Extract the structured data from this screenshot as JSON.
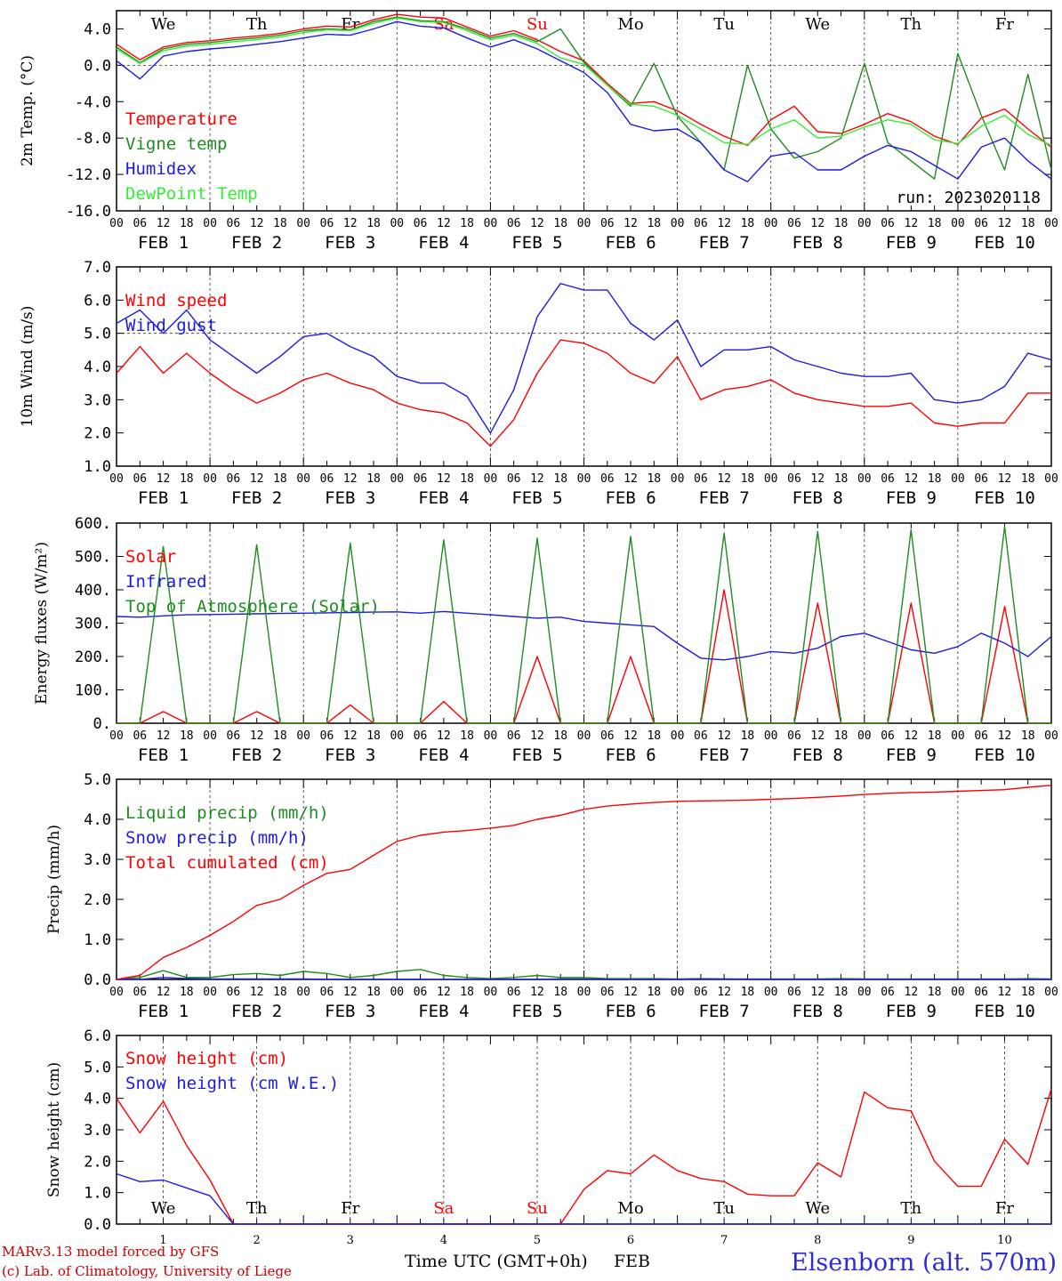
{
  "colors": {
    "red": "#ff0000",
    "dark_green": "#1e8c1e",
    "light_green": "#33ee33",
    "blue": "#1c1ce0",
    "axis": "#000000",
    "station": "#2b2bdf",
    "credit": "#cc0000"
  },
  "footer": {
    "credit_line1": "MARv3.13 model forced by GFS",
    "credit_line2": "(c) Lab. of Climatology, University of Liege",
    "time_label": "Time UTC (GMT+0h)",
    "month_label": "FEB",
    "station": "Elsenborn (alt. 570m)"
  },
  "chart_data": [
    {
      "type": "line",
      "ylabel": "2m Temp. (°C)",
      "ylim": [
        -16,
        6
      ],
      "yticks": [
        "4.0",
        "0.0",
        "-4.0",
        "-8.0",
        "-12.0",
        "-16.0"
      ],
      "ytick_values": [
        4,
        0,
        -4,
        -8,
        -12,
        -16
      ],
      "zero_line": 0,
      "weekday_labels": [
        "We",
        "Th",
        "Fr",
        "Sa",
        "Su",
        "Mo",
        "Tu",
        "We",
        "Th",
        "Fr"
      ],
      "weekday_colors": [
        "#000000",
        "#000000",
        "#000000",
        "#ff0000",
        "#ff0000",
        "#000000",
        "#000000",
        "#000000",
        "#000000",
        "#000000"
      ],
      "hour_ticks": [
        "00",
        "06",
        "12",
        "18"
      ],
      "date_labels": [
        "FEB 1",
        "FEB 2",
        "FEB 3",
        "FEB 4",
        "FEB 5",
        "FEB 6",
        "FEB 7",
        "FEB 8",
        "FEB 9",
        "FEB 10"
      ],
      "annotation": "run: 2023020118",
      "legend": [
        "Temperature",
        "Vigne temp",
        "Humidex",
        "DewPoint Temp"
      ],
      "x_hours": [
        0,
        6,
        12,
        18,
        24,
        30,
        36,
        42,
        48,
        54,
        60,
        66,
        72,
        78,
        84,
        90,
        96,
        102,
        108,
        114,
        120,
        126,
        132,
        138,
        144,
        150,
        156,
        162,
        168,
        174,
        180,
        186,
        192,
        198,
        204,
        210,
        216,
        222,
        228,
        234,
        240
      ],
      "series": [
        {
          "name": "Temperature",
          "color": "#ff0000",
          "values": [
            2.3,
            0.6,
            2.0,
            2.5,
            2.7,
            3.0,
            3.2,
            3.5,
            4.0,
            4.3,
            4.2,
            5.0,
            5.6,
            5.3,
            5.2,
            4.2,
            3.2,
            3.8,
            2.8,
            1.5,
            0.5,
            -2.0,
            -4.2,
            -4.0,
            -5.0,
            -6.5,
            -7.8,
            -8.8,
            -6.0,
            -4.5,
            -7.3,
            -7.5,
            -6.5,
            -5.3,
            -6.2,
            -7.8,
            -8.7,
            -5.8,
            -4.8,
            -7.0,
            -9.0
          ]
        },
        {
          "name": "Vigne temp",
          "color": "#1e8c1e",
          "values": [
            2.0,
            0.3,
            1.8,
            2.3,
            2.5,
            2.8,
            3.0,
            3.3,
            3.8,
            4.0,
            3.9,
            4.8,
            5.3,
            4.9,
            4.8,
            4.0,
            3.0,
            3.5,
            2.6,
            4.0,
            0.3,
            -2.2,
            -4.5,
            0.2,
            -5.6,
            -8.5,
            -11.5,
            0.0,
            -7.0,
            -10.2,
            -9.5,
            -8.0,
            0.2,
            -8.5,
            -10.5,
            -12.5,
            1.3,
            -5.5,
            -11.5,
            -1.0,
            -11.5
          ]
        },
        {
          "name": "Humidex",
          "color": "#1c1ce0",
          "values": [
            0.5,
            -1.5,
            1.0,
            1.5,
            1.8,
            2.0,
            2.3,
            2.6,
            3.0,
            3.4,
            3.3,
            4.0,
            4.8,
            4.3,
            4.1,
            3.0,
            2.0,
            2.8,
            1.8,
            0.5,
            -0.8,
            -3.0,
            -6.5,
            -7.2,
            -7.0,
            -8.5,
            -11.5,
            -12.8,
            -10.0,
            -9.6,
            -11.5,
            -11.5,
            -10.0,
            -8.8,
            -9.5,
            -11.0,
            -12.5,
            -9.0,
            -8.0,
            -10.5,
            -12.5
          ]
        },
        {
          "name": "DewPoint Temp",
          "color": "#33ee33",
          "values": [
            1.8,
            0.2,
            1.6,
            2.1,
            2.3,
            2.6,
            2.8,
            3.1,
            3.6,
            3.9,
            3.8,
            4.6,
            5.2,
            4.8,
            4.7,
            3.8,
            2.8,
            3.3,
            2.4,
            0.8,
            0.1,
            -2.2,
            -4.3,
            -4.5,
            -5.5,
            -7.0,
            -8.5,
            -8.7,
            -7.0,
            -6.0,
            -8.0,
            -7.8,
            -6.8,
            -6.0,
            -6.5,
            -8.2,
            -8.6,
            -6.7,
            -5.5,
            -7.6,
            -8.8
          ]
        }
      ]
    },
    {
      "type": "line",
      "ylabel": "10m Wind (m/s)",
      "ylim": [
        1,
        7
      ],
      "yticks": [
        "7.0",
        "6.0",
        "5.0",
        "4.0",
        "3.0",
        "2.0",
        "1.0"
      ],
      "ytick_values": [
        7,
        6,
        5,
        4,
        3,
        2,
        1
      ],
      "zero_line": 5,
      "hour_ticks": [
        "00",
        "06",
        "12",
        "18"
      ],
      "date_labels": [
        "FEB 1",
        "FEB 2",
        "FEB 3",
        "FEB 4",
        "FEB 5",
        "FEB 6",
        "FEB 7",
        "FEB 8",
        "FEB 9",
        "FEB 10"
      ],
      "legend": [
        "Wind speed",
        "Wind gust"
      ],
      "x_hours": [
        0,
        6,
        12,
        18,
        24,
        30,
        36,
        42,
        48,
        54,
        60,
        66,
        72,
        78,
        84,
        90,
        96,
        102,
        108,
        114,
        120,
        126,
        132,
        138,
        144,
        150,
        156,
        162,
        168,
        174,
        180,
        186,
        192,
        198,
        204,
        210,
        216,
        222,
        228,
        234,
        240
      ],
      "series": [
        {
          "name": "Wind speed",
          "color": "#ff0000",
          "values": [
            3.8,
            4.6,
            3.8,
            4.4,
            3.8,
            3.3,
            2.9,
            3.2,
            3.6,
            3.8,
            3.5,
            3.3,
            2.9,
            2.7,
            2.6,
            2.3,
            1.6,
            2.4,
            3.8,
            4.8,
            4.7,
            4.4,
            3.8,
            3.5,
            4.3,
            3.0,
            3.3,
            3.4,
            3.6,
            3.2,
            3.0,
            2.9,
            2.8,
            2.8,
            2.9,
            2.3,
            2.2,
            2.3,
            2.3,
            3.2,
            3.2
          ]
        },
        {
          "name": "Wind gust",
          "color": "#1c1ce0",
          "values": [
            5.3,
            5.7,
            5.0,
            5.7,
            4.8,
            4.3,
            3.8,
            4.3,
            4.9,
            5.0,
            4.6,
            4.3,
            3.7,
            3.5,
            3.5,
            3.1,
            2.0,
            3.3,
            5.5,
            6.5,
            6.3,
            6.3,
            5.3,
            4.8,
            5.4,
            4.0,
            4.5,
            4.5,
            4.6,
            4.2,
            4.0,
            3.8,
            3.7,
            3.7,
            3.8,
            3.0,
            2.9,
            3.0,
            3.4,
            4.4,
            4.2
          ]
        }
      ]
    },
    {
      "type": "line",
      "ylabel": "Energy fluxes (W/m²)",
      "ylim": [
        0,
        600
      ],
      "yticks": [
        "600.",
        "500.",
        "400.",
        "300.",
        "200.",
        "100.",
        "0."
      ],
      "ytick_values": [
        600,
        500,
        400,
        300,
        200,
        100,
        0
      ],
      "hour_ticks": [
        "00",
        "06",
        "12",
        "18"
      ],
      "date_labels": [
        "FEB 1",
        "FEB 2",
        "FEB 3",
        "FEB 4",
        "FEB 5",
        "FEB 6",
        "FEB 7",
        "FEB 8",
        "FEB 9",
        "FEB 10"
      ],
      "legend": [
        "Solar",
        "Infrared",
        "Top of Atmosphere (Solar)"
      ],
      "x_hours": [
        0,
        6,
        12,
        18,
        24,
        30,
        36,
        42,
        48,
        54,
        60,
        66,
        72,
        78,
        84,
        90,
        96,
        102,
        108,
        114,
        120,
        126,
        132,
        138,
        144,
        150,
        156,
        162,
        168,
        174,
        180,
        186,
        192,
        198,
        204,
        210,
        216,
        222,
        228,
        234,
        240
      ],
      "series": [
        {
          "name": "Solar",
          "color": "#ff0000",
          "values": [
            0,
            0,
            35,
            0,
            0,
            0,
            35,
            0,
            0,
            0,
            55,
            0,
            0,
            0,
            65,
            0,
            0,
            0,
            200,
            0,
            0,
            0,
            200,
            0,
            0,
            0,
            400,
            0,
            0,
            0,
            360,
            0,
            0,
            0,
            360,
            0,
            0,
            0,
            350,
            0,
            0
          ]
        },
        {
          "name": "Infrared",
          "color": "#1c1ce0",
          "values": [
            320,
            318,
            322,
            325,
            326,
            327,
            328,
            329,
            330,
            331,
            332,
            333,
            334,
            330,
            335,
            330,
            325,
            320,
            315,
            318,
            305,
            300,
            295,
            290,
            240,
            195,
            190,
            200,
            215,
            210,
            225,
            260,
            270,
            245,
            220,
            210,
            230,
            270,
            240,
            200,
            260
          ]
        },
        {
          "name": "Top of Atmosphere (Solar)",
          "color": "#1e8c1e",
          "values": [
            0,
            0,
            530,
            0,
            0,
            0,
            535,
            0,
            0,
            0,
            540,
            0,
            0,
            0,
            550,
            0,
            0,
            0,
            555,
            0,
            0,
            0,
            560,
            0,
            0,
            0,
            570,
            0,
            0,
            0,
            575,
            0,
            0,
            0,
            580,
            0,
            0,
            0,
            590,
            0,
            0
          ]
        }
      ]
    },
    {
      "type": "line",
      "ylabel": "Precip (mm/h)",
      "ylim": [
        0,
        5
      ],
      "yticks": [
        "5.0",
        "4.0",
        "3.0",
        "2.0",
        "1.0",
        "0.0"
      ],
      "ytick_values": [
        5,
        4,
        3,
        2,
        1,
        0
      ],
      "hour_ticks": [
        "00",
        "06",
        "12",
        "18"
      ],
      "date_labels": [
        "FEB 1",
        "FEB 2",
        "FEB 3",
        "FEB 4",
        "FEB 5",
        "FEB 6",
        "FEB 7",
        "FEB 8",
        "FEB 9",
        "FEB 10"
      ],
      "legend": [
        "Liquid precip (mm/h)",
        "Snow precip (mm/h)",
        "Total cumulated (cm)"
      ],
      "x_hours": [
        0,
        6,
        12,
        18,
        24,
        30,
        36,
        42,
        48,
        54,
        60,
        66,
        72,
        78,
        84,
        90,
        96,
        102,
        108,
        114,
        120,
        126,
        132,
        138,
        144,
        150,
        156,
        162,
        168,
        174,
        180,
        186,
        192,
        198,
        204,
        210,
        216,
        222,
        228,
        234,
        240
      ],
      "series": [
        {
          "name": "Liquid precip (mm/h)",
          "color": "#1e8c1e",
          "values": [
            0.0,
            0.05,
            0.22,
            0.05,
            0.05,
            0.12,
            0.15,
            0.1,
            0.2,
            0.15,
            0.05,
            0.1,
            0.2,
            0.25,
            0.1,
            0.05,
            0.02,
            0.05,
            0.1,
            0.05,
            0.05,
            0.02,
            0.02,
            0.02,
            0.01,
            0.02,
            0.01,
            0.01,
            0.01,
            0.01,
            0.01,
            0.02,
            0.01,
            0.01,
            0.01,
            0.01,
            0.01,
            0.01,
            0.01,
            0.02,
            0.01
          ]
        },
        {
          "name": "Snow precip (mm/h)",
          "color": "#1c1ce0",
          "values": [
            0.0,
            0.0,
            0.05,
            0.02,
            0.01,
            0.01,
            0.01,
            0.01,
            0.01,
            0.0,
            0.0,
            0.0,
            0.0,
            0.0,
            0.0,
            0.0,
            0.0,
            0.0,
            0.0,
            0.01,
            0.01,
            0.0,
            0.0,
            0.0,
            0.0,
            0.01,
            0.01,
            0.0,
            0.0,
            0.0,
            0.0,
            0.0,
            0.0,
            0.0,
            0.0,
            0.0,
            0.0,
            0.0,
            0.0,
            0.0,
            0.0
          ]
        },
        {
          "name": "Total cumulated (cm)",
          "color": "#ff0000",
          "values": [
            0.0,
            0.1,
            0.55,
            0.8,
            1.1,
            1.45,
            1.85,
            2.0,
            2.35,
            2.65,
            2.75,
            3.1,
            3.45,
            3.6,
            3.68,
            3.72,
            3.78,
            3.85,
            4.0,
            4.1,
            4.25,
            4.33,
            4.38,
            4.42,
            4.45,
            4.46,
            4.47,
            4.48,
            4.5,
            4.52,
            4.55,
            4.58,
            4.62,
            4.65,
            4.67,
            4.68,
            4.7,
            4.72,
            4.74,
            4.8,
            4.85
          ]
        }
      ]
    },
    {
      "type": "line",
      "ylabel": "Snow height (cm)",
      "ylim": [
        0,
        6
      ],
      "yticks": [
        "6.0",
        "5.0",
        "4.0",
        "3.0",
        "2.0",
        "1.0",
        "0.0"
      ],
      "ytick_values": [
        6,
        5,
        4,
        3,
        2,
        1,
        0
      ],
      "weekday_labels": [
        "We",
        "Th",
        "Fr",
        "Sa",
        "Su",
        "Mo",
        "Tu",
        "We",
        "Th",
        "Fr"
      ],
      "weekday_colors": [
        "#000000",
        "#000000",
        "#000000",
        "#ff0000",
        "#ff0000",
        "#000000",
        "#000000",
        "#000000",
        "#000000",
        "#000000"
      ],
      "day_numbers": [
        "1",
        "2",
        "3",
        "4",
        "5",
        "6",
        "7",
        "8",
        "9",
        "10"
      ],
      "legend": [
        "Snow height (cm)",
        "Snow height (cm W.E.)"
      ],
      "x_hours": [
        0,
        6,
        12,
        18,
        24,
        30,
        36,
        42,
        48,
        54,
        60,
        66,
        72,
        78,
        84,
        90,
        96,
        102,
        108,
        114,
        120,
        126,
        132,
        138,
        144,
        150,
        156,
        162,
        168,
        174,
        180,
        186,
        192,
        198,
        204,
        210,
        216,
        222,
        228,
        234,
        240
      ],
      "series": [
        {
          "name": "Snow height (cm)",
          "color": "#ff0000",
          "values": [
            4.0,
            2.9,
            3.9,
            2.5,
            1.4,
            0.0,
            0.0,
            0.0,
            0.0,
            0.0,
            0.0,
            0.0,
            0.0,
            0.0,
            0.0,
            0.0,
            0.0,
            0.0,
            0.0,
            0.0,
            1.1,
            1.7,
            1.6,
            2.2,
            1.7,
            1.45,
            1.35,
            0.95,
            0.9,
            0.9,
            1.95,
            1.5,
            4.2,
            3.7,
            3.6,
            2.0,
            1.2,
            1.2,
            2.7,
            1.9,
            4.3
          ]
        },
        {
          "name": "Snow height (cm W.E.)",
          "color": "#1c1ce0",
          "values": [
            1.6,
            1.35,
            1.4,
            1.15,
            0.9,
            0.0,
            0.0,
            0.0,
            0.0,
            0.0,
            0.0,
            0.0,
            0.0,
            0.0,
            0.0,
            0.0,
            0.0,
            0.0,
            0.0,
            0.0,
            0.0,
            0.0,
            0.0,
            0.0,
            0.0,
            0.0,
            0.0,
            0.0,
            0.0,
            0.0,
            0.0,
            0.0,
            0.0,
            0.0,
            0.0,
            0.0,
            0.0,
            0.0,
            0.0,
            0.0,
            0.0
          ]
        }
      ]
    }
  ]
}
